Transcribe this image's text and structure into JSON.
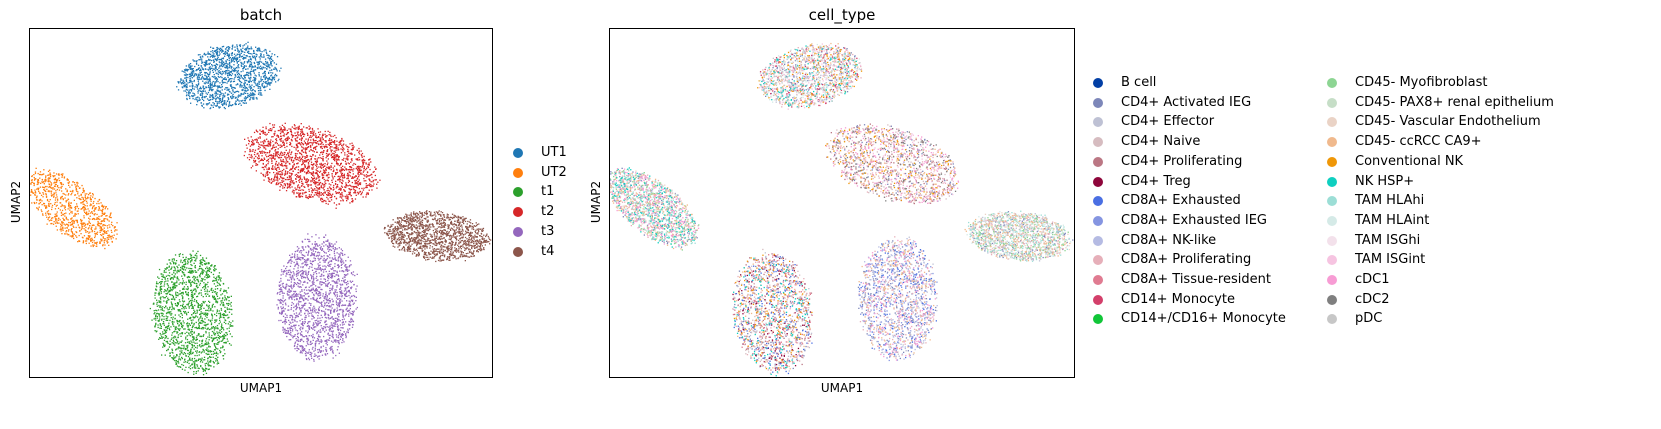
{
  "chart_data": [
    {
      "type": "scatter",
      "title": "batch",
      "xlabel": "UMAP1",
      "ylabel": "UMAP2",
      "grid": false,
      "ticks": false,
      "legend_placement": "right",
      "xlim": [
        0,
        10
      ],
      "ylim": [
        0,
        7.5
      ],
      "series": [
        {
          "name": "UT1",
          "color": "#1f77b4",
          "cx": 4.3,
          "cy": 6.5,
          "rx": 1.1,
          "ry": 0.65,
          "rot": 12,
          "n": 1400
        },
        {
          "name": "UT2",
          "color": "#ff7f0e",
          "cx": 0.9,
          "cy": 3.65,
          "rx": 1.15,
          "ry": 0.55,
          "rot": -38,
          "n": 900
        },
        {
          "name": "t1",
          "color": "#2ca02c",
          "cx": 3.5,
          "cy": 1.4,
          "rx": 0.85,
          "ry": 1.3,
          "rot": 8,
          "n": 1600
        },
        {
          "name": "t2",
          "color": "#d62728",
          "cx": 6.1,
          "cy": 4.6,
          "rx": 1.45,
          "ry": 0.75,
          "rot": -18,
          "n": 1800
        },
        {
          "name": "t3",
          "color": "#9467bd",
          "cx": 6.2,
          "cy": 1.7,
          "rx": 0.85,
          "ry": 1.3,
          "rot": 0,
          "n": 1600
        },
        {
          "name": "t4",
          "color": "#8c564b",
          "cx": 8.8,
          "cy": 3.05,
          "rx": 1.1,
          "ry": 0.52,
          "rot": -6,
          "n": 1400
        }
      ]
    },
    {
      "type": "scatter",
      "title": "cell_type",
      "xlabel": "UMAP1",
      "ylabel": "UMAP2",
      "grid": false,
      "ticks": false,
      "legend_placement": "right",
      "legend_columns": 2,
      "xlim": [
        0,
        10
      ],
      "ylim": [
        0,
        7.5
      ],
      "clusters": [
        {
          "cx": 4.3,
          "cy": 6.5,
          "rx": 1.1,
          "ry": 0.65,
          "rot": 12,
          "mix": [
            1,
            2,
            9,
            11,
            16,
            17,
            18,
            20,
            22,
            25
          ]
        },
        {
          "cx": 0.9,
          "cy": 3.65,
          "rx": 1.15,
          "ry": 0.55,
          "rot": -38,
          "mix": [
            15,
            18,
            19,
            13,
            1,
            9,
            16,
            23
          ]
        },
        {
          "cx": 3.5,
          "cy": 1.4,
          "rx": 0.85,
          "ry": 1.3,
          "rot": 8,
          "mix": [
            1,
            2,
            3,
            4,
            9,
            10,
            5,
            6,
            16,
            17,
            18
          ]
        },
        {
          "cx": 6.1,
          "cy": 4.6,
          "rx": 1.45,
          "ry": 0.75,
          "rot": -18,
          "mix": [
            16,
            17,
            23,
            24,
            3,
            4,
            1,
            9,
            22
          ]
        },
        {
          "cx": 6.2,
          "cy": 1.7,
          "rx": 0.85,
          "ry": 1.3,
          "rot": 0,
          "mix": [
            1,
            7,
            8,
            6,
            2,
            9,
            23,
            16
          ]
        },
        {
          "cx": 8.8,
          "cy": 3.05,
          "rx": 1.1,
          "ry": 0.52,
          "rot": -6,
          "mix": [
            20,
            19,
            15,
            16,
            9,
            1,
            2,
            13
          ]
        }
      ],
      "series": [
        {
          "name": "B cell",
          "color": "#023fa5"
        },
        {
          "name": "CD4+ Activated IEG",
          "color": "#7d87b9"
        },
        {
          "name": "CD4+ Effector",
          "color": "#bec1d4"
        },
        {
          "name": "CD4+ Naive",
          "color": "#d6bcc0"
        },
        {
          "name": "CD4+ Proliferating",
          "color": "#bb7784"
        },
        {
          "name": "CD4+ Treg",
          "color": "#8e063b"
        },
        {
          "name": "CD8A+ Exhausted",
          "color": "#4a6fe3"
        },
        {
          "name": "CD8A+ Exhausted IEG",
          "color": "#8595e1"
        },
        {
          "name": "CD8A+ NK-like",
          "color": "#b5bbe3"
        },
        {
          "name": "CD8A+ Proliferating",
          "color": "#e6afb9"
        },
        {
          "name": "CD8A+ Tissue-resident",
          "color": "#e07b91"
        },
        {
          "name": "CD14+ Monocyte",
          "color": "#d33f6a"
        },
        {
          "name": "CD14+/CD16+ Monocyte",
          "color": "#11c638"
        },
        {
          "name": "CD45- Myofibroblast",
          "color": "#8dd593"
        },
        {
          "name": "CD45- PAX8+ renal epithelium",
          "color": "#c6dec7"
        },
        {
          "name": "CD45- Vascular Endothelium",
          "color": "#ead3c6"
        },
        {
          "name": "CD45- ccRCC CA9+",
          "color": "#f0b98d"
        },
        {
          "name": "Conventional NK",
          "color": "#ef9708"
        },
        {
          "name": "NK HSP+",
          "color": "#0fcfc0"
        },
        {
          "name": "TAM HLAhi",
          "color": "#9cded6"
        },
        {
          "name": "TAM HLAint",
          "color": "#d5eae7"
        },
        {
          "name": "TAM ISGhi",
          "color": "#f3e1eb"
        },
        {
          "name": "TAM ISGint",
          "color": "#f6c4e1"
        },
        {
          "name": "cDC1",
          "color": "#f79cd4"
        },
        {
          "name": "cDC2",
          "color": "#7f7f7f"
        },
        {
          "name": "pDC",
          "color": "#c7c7c7"
        }
      ]
    }
  ]
}
